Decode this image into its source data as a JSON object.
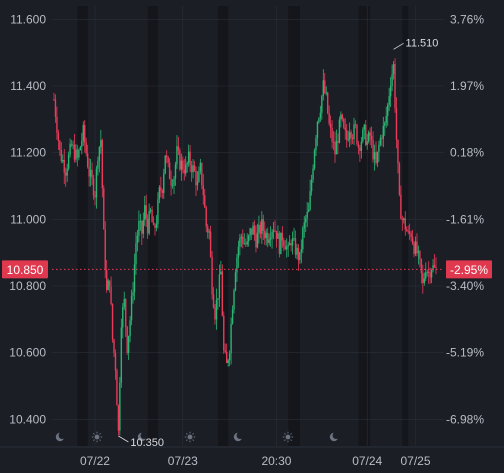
{
  "chart_data": {
    "type": "candlestick",
    "y_axis_left": {
      "ticks": [
        "11.600",
        "11.400",
        "11.200",
        "11.000",
        "10.800",
        "10.600",
        "10.400"
      ],
      "tick_values": [
        11.6,
        11.4,
        11.2,
        11.0,
        10.8,
        10.6,
        10.4
      ],
      "ylim": [
        10.32,
        11.64
      ]
    },
    "y_axis_right": {
      "ticks": [
        "3.76%",
        "1.97%",
        "0.18%",
        "-1.61%",
        "-3.40%",
        "-5.19%",
        "-6.98%"
      ]
    },
    "x_axis": {
      "ticks": [
        "07/22",
        "07/23",
        "20:30",
        "07/24",
        "07/25"
      ]
    },
    "current_price": {
      "label": "10.850",
      "value": 10.85,
      "change_label": "-2.95%"
    },
    "annotations": [
      {
        "label": "11.510",
        "value": 11.51
      },
      {
        "label": "10.350",
        "value": 10.35
      }
    ],
    "session_icons": [
      "moon",
      "sun",
      "moon",
      "sun",
      "moon",
      "sun",
      "moon"
    ],
    "colors": {
      "up": "#2bb673",
      "down": "#ea3b5a",
      "background": "#1b1e25",
      "band": "#14161b",
      "grid": "#2a2e37",
      "badge": "#e0394f"
    },
    "price_path": [
      [
        0,
        11.36
      ],
      [
        4,
        11.2
      ],
      [
        8,
        11.15
      ],
      [
        12,
        11.22
      ],
      [
        16,
        11.18
      ],
      [
        20,
        11.26
      ],
      [
        24,
        11.14
      ],
      [
        28,
        11.08
      ],
      [
        30,
        11.2
      ],
      [
        32,
        11.24
      ],
      [
        34,
        10.95
      ],
      [
        36,
        10.78
      ],
      [
        38,
        10.82
      ],
      [
        40,
        10.64
      ],
      [
        42,
        10.56
      ],
      [
        44,
        10.36
      ],
      [
        46,
        10.7
      ],
      [
        48,
        10.75
      ],
      [
        50,
        10.62
      ],
      [
        52,
        10.7
      ],
      [
        54,
        10.8
      ],
      [
        56,
        10.93
      ],
      [
        58,
        10.98
      ],
      [
        60,
        10.96
      ],
      [
        62,
        11.03
      ],
      [
        64,
        10.98
      ],
      [
        66,
        11.02
      ],
      [
        68,
        10.96
      ],
      [
        70,
        11.0
      ],
      [
        72,
        11.08
      ],
      [
        74,
        11.1
      ],
      [
        76,
        11.2
      ],
      [
        78,
        11.15
      ],
      [
        80,
        11.12
      ],
      [
        82,
        11.13
      ],
      [
        84,
        11.2
      ],
      [
        86,
        11.17
      ],
      [
        88,
        11.16
      ],
      [
        90,
        11.15
      ],
      [
        92,
        11.18
      ],
      [
        94,
        11.16
      ],
      [
        96,
        11.14
      ],
      [
        98,
        11.1
      ],
      [
        100,
        11.15
      ],
      [
        102,
        11.08
      ],
      [
        104,
        10.98
      ],
      [
        106,
        10.96
      ],
      [
        108,
        10.8
      ],
      [
        110,
        10.72
      ],
      [
        112,
        10.78
      ],
      [
        114,
        10.84
      ],
      [
        116,
        10.6
      ],
      [
        118,
        10.56
      ],
      [
        120,
        10.62
      ],
      [
        122,
        10.75
      ],
      [
        124,
        10.86
      ],
      [
        126,
        10.92
      ],
      [
        128,
        10.95
      ],
      [
        130,
        10.93
      ],
      [
        132,
        10.92
      ],
      [
        134,
        10.96
      ],
      [
        136,
        10.97
      ],
      [
        138,
        10.94
      ],
      [
        140,
        10.96
      ],
      [
        142,
        10.98
      ],
      [
        144,
        10.96
      ],
      [
        146,
        10.95
      ],
      [
        148,
        10.97
      ],
      [
        150,
        10.98
      ],
      [
        152,
        10.96
      ],
      [
        154,
        10.92
      ],
      [
        156,
        10.95
      ],
      [
        158,
        10.93
      ],
      [
        160,
        10.9
      ],
      [
        162,
        10.94
      ],
      [
        164,
        10.92
      ],
      [
        166,
        10.9
      ],
      [
        168,
        10.88
      ],
      [
        170,
        10.96
      ],
      [
        172,
        11.0
      ],
      [
        174,
        11.02
      ],
      [
        176,
        11.12
      ],
      [
        178,
        11.22
      ],
      [
        180,
        11.3
      ],
      [
        182,
        11.34
      ],
      [
        184,
        11.4
      ],
      [
        186,
        11.36
      ],
      [
        188,
        11.28
      ],
      [
        190,
        11.24
      ],
      [
        192,
        11.2
      ],
      [
        194,
        11.25
      ],
      [
        196,
        11.3
      ],
      [
        198,
        11.26
      ],
      [
        200,
        11.24
      ],
      [
        202,
        11.28
      ],
      [
        204,
        11.26
      ],
      [
        206,
        11.27
      ],
      [
        208,
        11.22
      ],
      [
        210,
        11.24
      ],
      [
        212,
        11.26
      ],
      [
        214,
        11.23
      ],
      [
        216,
        11.25
      ],
      [
        218,
        11.2
      ],
      [
        220,
        11.16
      ],
      [
        222,
        11.22
      ],
      [
        224,
        11.26
      ],
      [
        226,
        11.28
      ],
      [
        228,
        11.34
      ],
      [
        230,
        11.42
      ],
      [
        232,
        11.46
      ],
      [
        234,
        11.24
      ],
      [
        236,
        11.05
      ],
      [
        238,
        11.0
      ],
      [
        240,
        10.98
      ],
      [
        242,
        10.95
      ],
      [
        244,
        10.96
      ],
      [
        246,
        10.92
      ],
      [
        248,
        10.9
      ],
      [
        250,
        10.86
      ],
      [
        252,
        10.8
      ],
      [
        254,
        10.86
      ],
      [
        256,
        10.84
      ],
      [
        258,
        10.86
      ],
      [
        260,
        10.85
      ]
    ],
    "session_bands": [
      [
        16,
        23
      ],
      [
        64,
        71
      ],
      [
        112,
        119
      ],
      [
        160,
        168
      ],
      [
        208,
        216
      ],
      [
        238,
        242
      ]
    ]
  },
  "icons": {
    "moon": "moon-icon",
    "sun": "sun-icon"
  }
}
